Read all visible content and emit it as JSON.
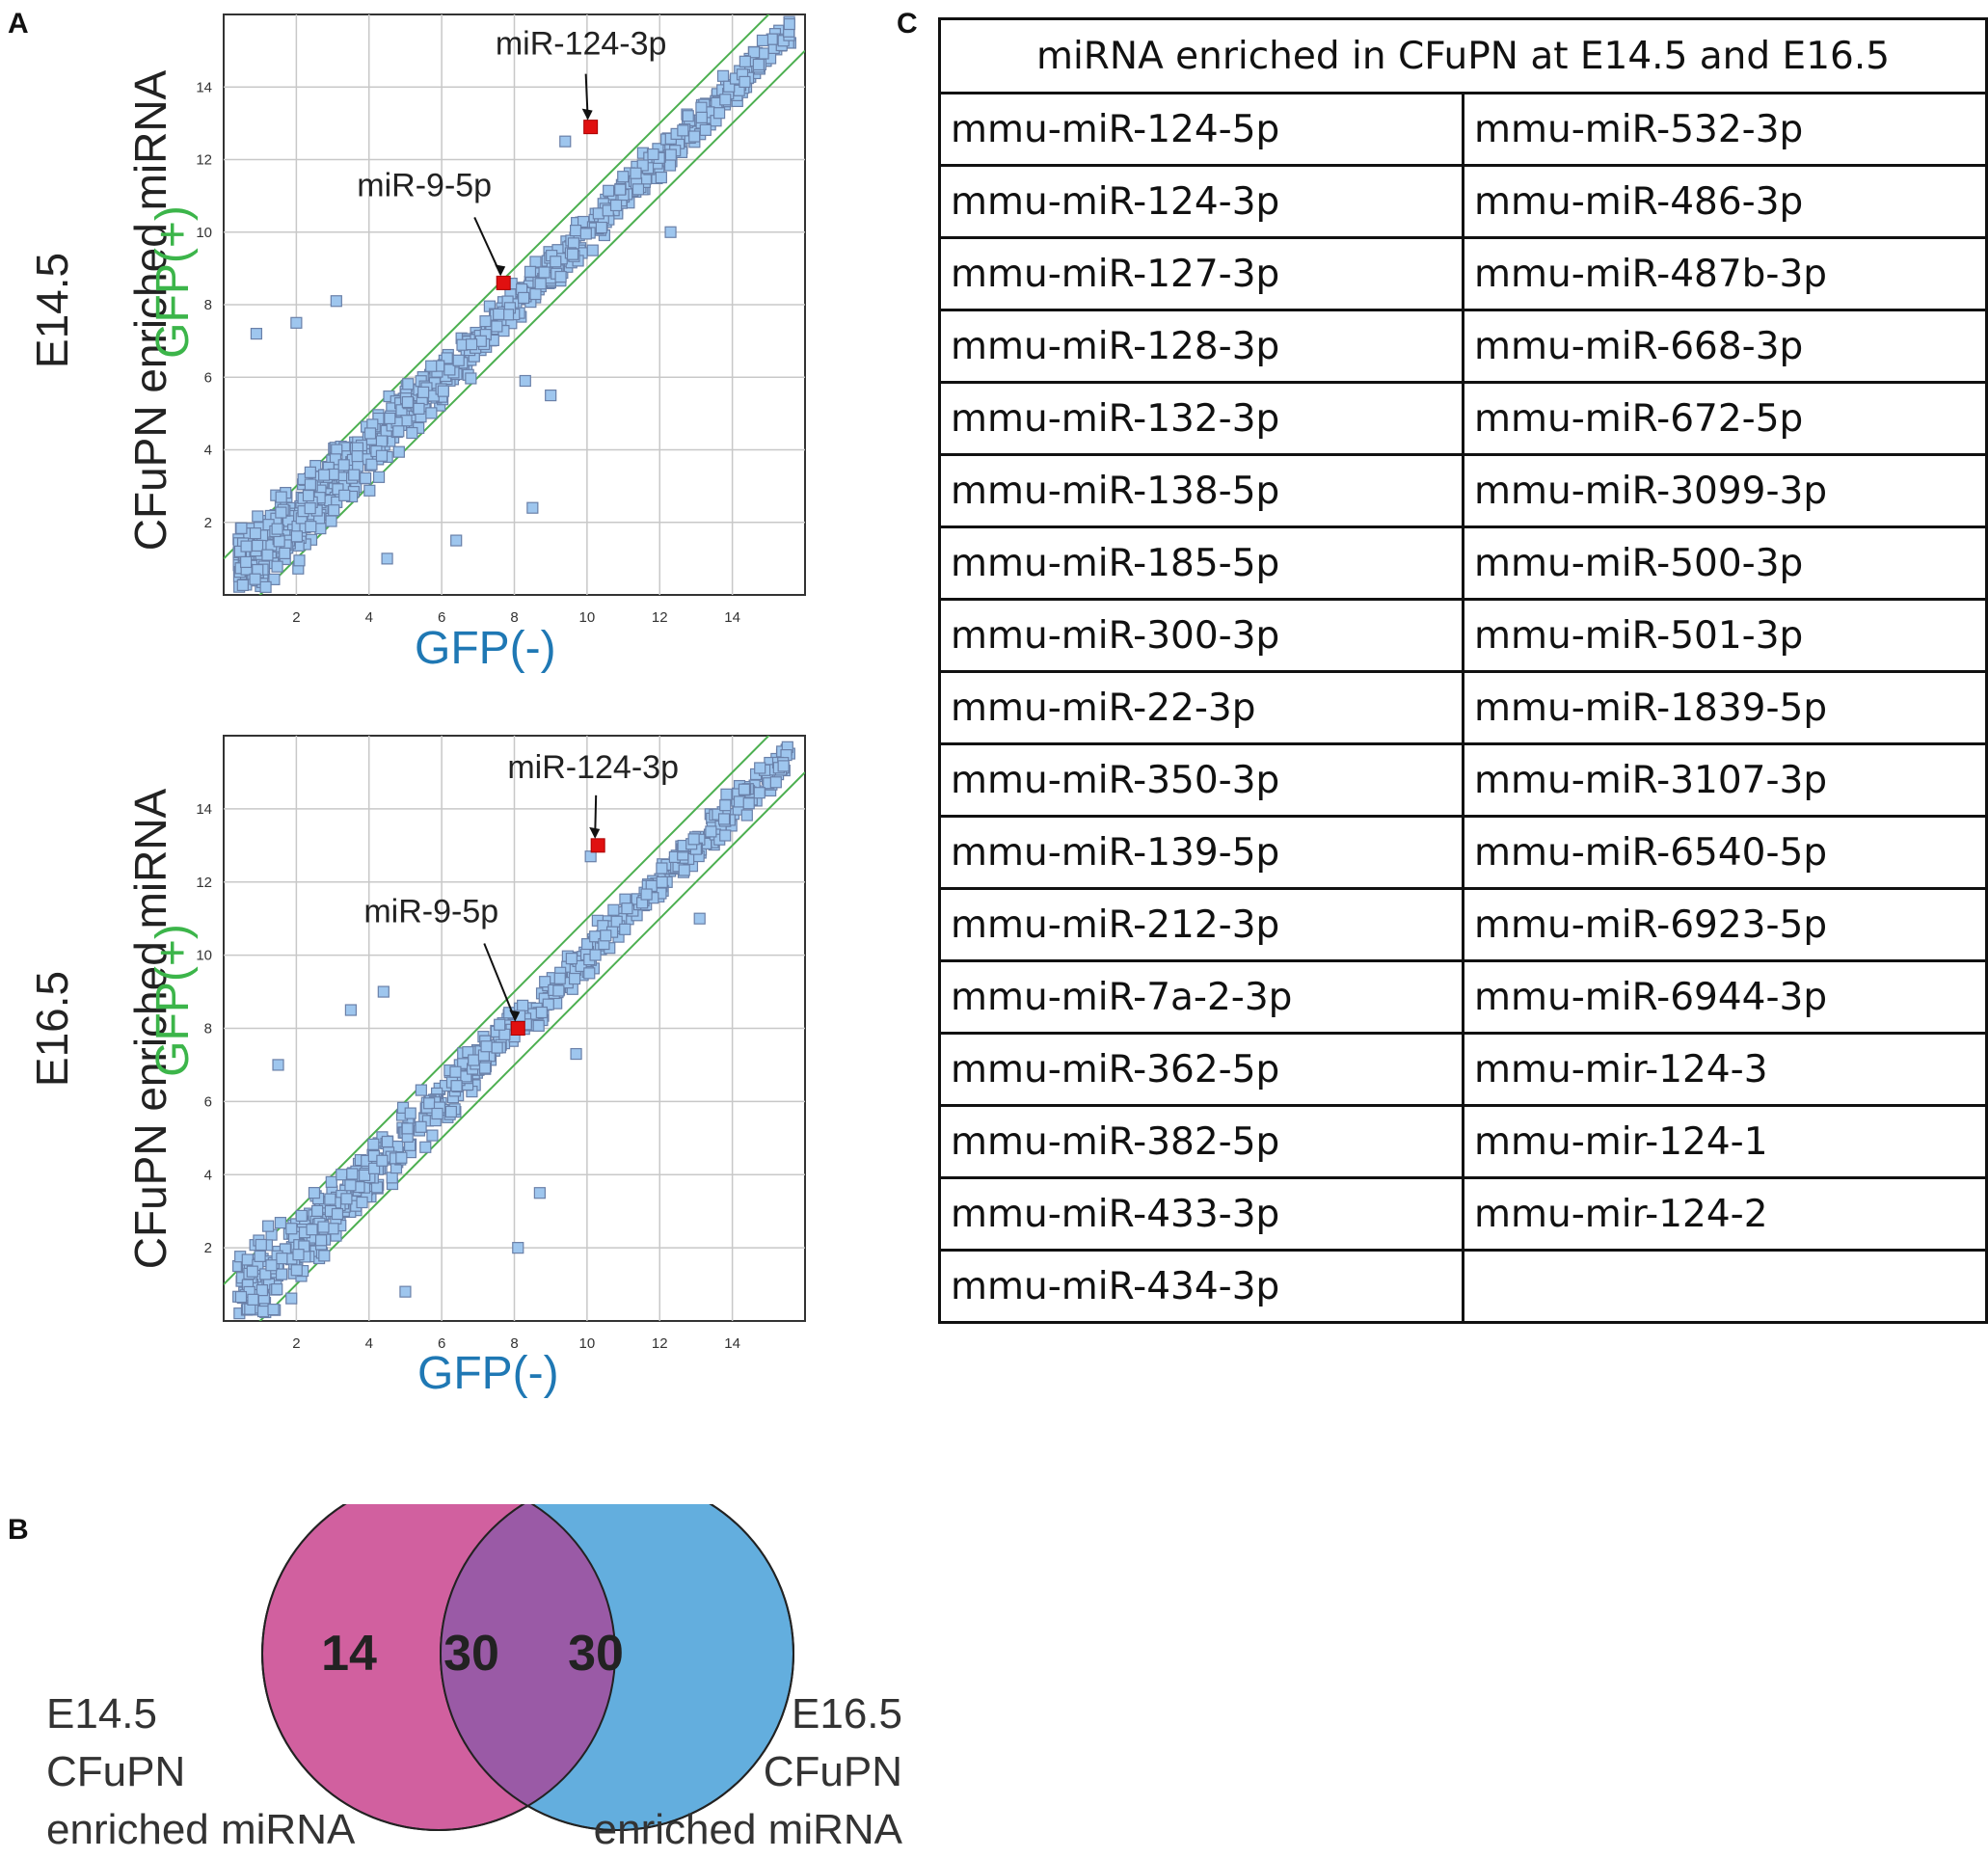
{
  "panels": {
    "a": "A",
    "b": "B",
    "c": "C"
  },
  "chart_data": [
    {
      "type": "scatter",
      "stage": "E14.5",
      "row_label_line1": "E14.5",
      "row_label_line2": "CFuPN enriched miRNA",
      "xlabel": "GFP(-)",
      "ylabel": "GFP(+)",
      "xlim": [
        0,
        16
      ],
      "ylim": [
        0,
        16
      ],
      "xticks": [
        2,
        4,
        6,
        8,
        10,
        12,
        14
      ],
      "yticks": [
        2,
        4,
        6,
        8,
        10,
        12,
        14
      ],
      "grid": true,
      "reference_lines": [
        {
          "intercept": 1.0,
          "slope": 1
        },
        {
          "intercept": -1.0,
          "slope": 1
        }
      ],
      "highlights": [
        {
          "label": "miR-124-3p",
          "x": 10.1,
          "y": 12.9
        },
        {
          "label": "miR-9-5p",
          "x": 7.7,
          "y": 8.6
        }
      ],
      "marker_color": "#9ec6ee",
      "highlight_color": "#e01010"
    },
    {
      "type": "scatter",
      "stage": "E16.5",
      "row_label_line1": "E16.5",
      "row_label_line2": "CFuPN enriched miRNA",
      "xlabel": "GFP(-)",
      "ylabel": "GFP(+)",
      "xlim": [
        0,
        16
      ],
      "ylim": [
        0,
        16
      ],
      "xticks": [
        2,
        4,
        6,
        8,
        10,
        12,
        14
      ],
      "yticks": [
        2,
        4,
        6,
        8,
        10,
        12,
        14
      ],
      "grid": true,
      "reference_lines": [
        {
          "intercept": 1.0,
          "slope": 1
        },
        {
          "intercept": -1.0,
          "slope": 1
        }
      ],
      "highlights": [
        {
          "label": "miR-124-3p",
          "x": 10.3,
          "y": 13.0
        },
        {
          "label": "miR-9-5p",
          "x": 8.1,
          "y": 8.0
        }
      ],
      "marker_color": "#9ec6ee",
      "highlight_color": "#e01010"
    }
  ],
  "venn": {
    "left_only": "14",
    "overlap": "30",
    "right_only": "30",
    "left_label": [
      "E14.5",
      "CFuPN",
      "enriched miRNA"
    ],
    "right_label": [
      "E16.5",
      "CFuPN",
      "enriched miRNA"
    ],
    "left_color": "#d1609f",
    "right_color": "#63aede",
    "overlap_color": "#9a5aa6"
  },
  "table": {
    "title": "miRNA enriched in CFuPN at E14.5 and E16.5",
    "rows": [
      [
        "mmu-miR-124-5p",
        "mmu-miR-532-3p"
      ],
      [
        "mmu-miR-124-3p",
        "mmu-miR-486-3p"
      ],
      [
        "mmu-miR-127-3p",
        "mmu-miR-487b-3p"
      ],
      [
        "mmu-miR-128-3p",
        "mmu-miR-668-3p"
      ],
      [
        "mmu-miR-132-3p",
        "mmu-miR-672-5p"
      ],
      [
        "mmu-miR-138-5p",
        "mmu-miR-3099-3p"
      ],
      [
        "mmu-miR-185-5p",
        "mmu-miR-500-3p"
      ],
      [
        "mmu-miR-300-3p",
        "mmu-miR-501-3p"
      ],
      [
        "mmu-miR-22-3p",
        "mmu-miR-1839-5p"
      ],
      [
        "mmu-miR-350-3p",
        "mmu-miR-3107-3p"
      ],
      [
        "mmu-miR-139-5p",
        "mmu-miR-6540-5p"
      ],
      [
        "mmu-miR-212-3p",
        "mmu-miR-6923-5p"
      ],
      [
        "mmu-miR-7a-2-3p",
        "mmu-miR-6944-3p"
      ],
      [
        "mmu-miR-362-5p",
        "mmu-mir-124-3"
      ],
      [
        "mmu-miR-382-5p",
        "mmu-mir-124-1"
      ],
      [
        "mmu-miR-433-3p",
        "mmu-mir-124-2"
      ],
      [
        "mmu-miR-434-3p",
        ""
      ]
    ]
  }
}
